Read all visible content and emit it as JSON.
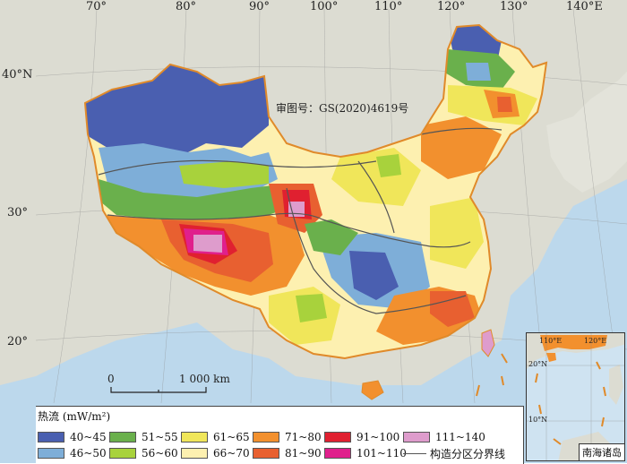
{
  "map": {
    "approval_no": "审图号：GS(2020)4619号",
    "lon_labels": [
      "70°",
      "80°",
      "90°",
      "100°",
      "110°",
      "120°",
      "130°",
      "140°E"
    ],
    "lat_labels": [
      "40°N",
      "30°",
      "20°"
    ],
    "scale": {
      "zero": "0",
      "distance": "1 000 km"
    },
    "colors": {
      "sea": "#bcd8ec",
      "land_outside": "#dcdcd2",
      "border": "#e08a2a",
      "tectonic_line": "#555555"
    }
  },
  "legend": {
    "title": "热流 (mW/m²)",
    "items": [
      {
        "label": "40~45",
        "color": "#4a5fb0"
      },
      {
        "label": "46~50",
        "color": "#7eaed8"
      },
      {
        "label": "51~55",
        "color": "#6ab04c"
      },
      {
        "label": "56~60",
        "color": "#a8d23c"
      },
      {
        "label": "61~65",
        "color": "#f0e65a"
      },
      {
        "label": "66~70",
        "color": "#fdf0b0"
      },
      {
        "label": "71~80",
        "color": "#f2902e"
      },
      {
        "label": "81~90",
        "color": "#e86030"
      },
      {
        "label": "91~100",
        "color": "#e02030"
      },
      {
        "label": "101~110",
        "color": "#e0208c"
      },
      {
        "label": "111~140",
        "color": "#de9ccc"
      }
    ],
    "tectonic_line_label": "构造分区分界线"
  },
  "inset": {
    "title": "南海诸岛",
    "lon_labels": [
      "110°E",
      "120°E"
    ],
    "lat_labels": [
      "20°N",
      "10°N"
    ]
  }
}
